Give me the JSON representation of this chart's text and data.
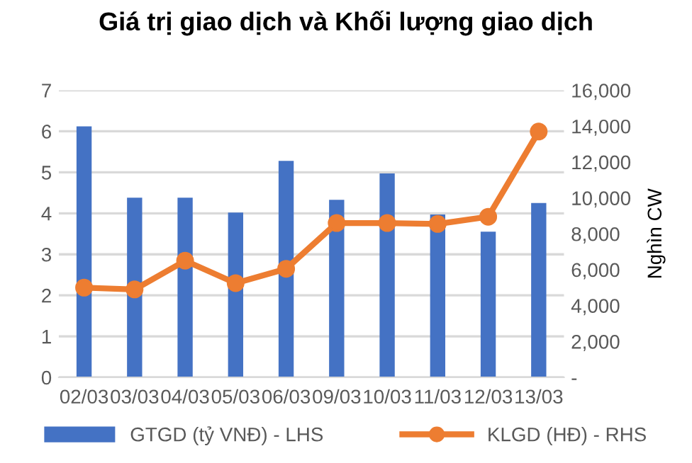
{
  "chart_data": {
    "type": "bar",
    "title": "Giá trị giao dịch và Khối lượng giao dịch",
    "y2label": "Nghìn CW",
    "categories": [
      "02/03",
      "03/03",
      "04/03",
      "05/03",
      "06/03",
      "09/03",
      "10/03",
      "11/03",
      "12/03",
      "13/03"
    ],
    "series": [
      {
        "name": "GTGD (tỷ VNĐ) - LHS",
        "color": "#4472c4",
        "values": [
          6.12,
          4.38,
          4.38,
          4.02,
          5.28,
          4.33,
          4.97,
          3.97,
          3.55,
          4.25
        ]
      },
      {
        "name": "KLGD (HĐ) - RHS",
        "color": "#ed7d31",
        "type": "line",
        "axis": "y2",
        "marker": "circle",
        "values": [
          5000,
          4900,
          6500,
          5250,
          6050,
          8600,
          8600,
          8550,
          8950,
          13700
        ]
      }
    ],
    "ylim": [
      0,
      7
    ],
    "yticks": [
      0,
      1,
      2,
      3,
      4,
      5,
      6,
      7
    ],
    "y2lim": [
      0,
      16000
    ],
    "y2ticks": [
      {
        "value": 0,
        "label": "-"
      },
      {
        "value": 2000,
        "label": "2,000"
      },
      {
        "value": 4000,
        "label": "4,000"
      },
      {
        "value": 6000,
        "label": "6,000"
      },
      {
        "value": 8000,
        "label": "8,000"
      },
      {
        "value": 10000,
        "label": "10,000"
      },
      {
        "value": 12000,
        "label": "12,000"
      },
      {
        "value": 14000,
        "label": "14,000"
      },
      {
        "value": 16000,
        "label": "16,000"
      }
    ],
    "grid": "y",
    "legend": "bottom"
  }
}
